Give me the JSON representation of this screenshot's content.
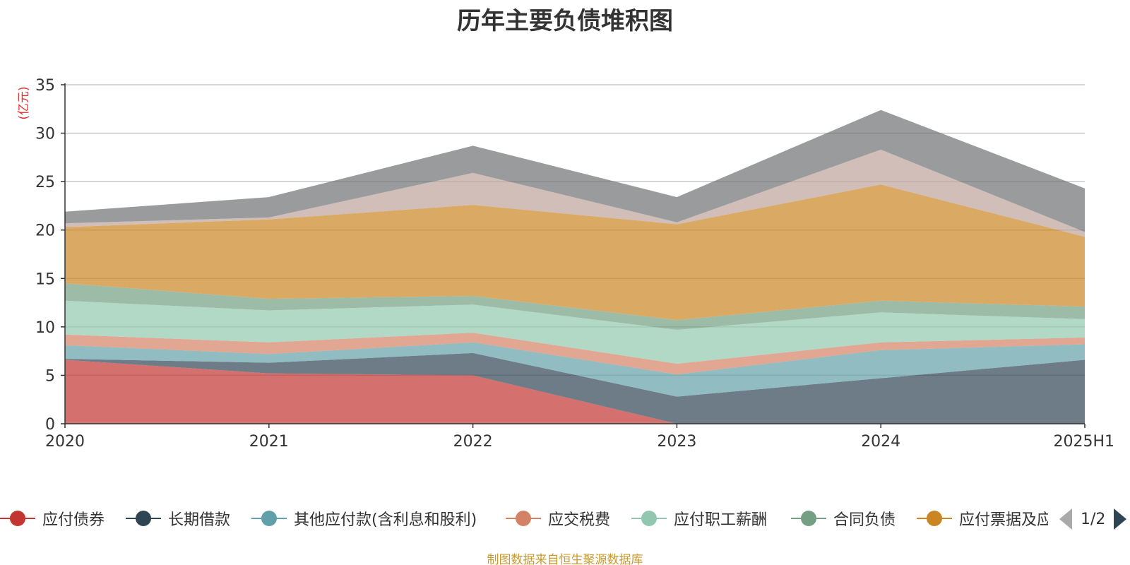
{
  "title": "历年主要负债堆积图",
  "source": "制图数据来自恒生聚源数据库",
  "pager": {
    "label": "1/2"
  },
  "chart_data": {
    "type": "area",
    "stacked": true,
    "title": "历年主要负债堆积图",
    "ylabel": "(亿元)",
    "xlabel": "",
    "ylim": [
      0,
      35
    ],
    "yticks": [
      0,
      5,
      10,
      15,
      20,
      25,
      30,
      35
    ],
    "grid": true,
    "legend_position": "bottom",
    "categories": [
      "2020",
      "2021",
      "2022",
      "2023",
      "2024",
      "2025H1"
    ],
    "series": [
      {
        "name": "应付债券",
        "color": "#c23531",
        "values": [
          6.6,
          5.2,
          5.0,
          0.0,
          0.0,
          0.0
        ]
      },
      {
        "name": "长期借款",
        "color": "#2f4554",
        "values": [
          0.1,
          1.1,
          2.3,
          2.8,
          4.7,
          6.6
        ]
      },
      {
        "name": "其他应付款(含利息和股利)",
        "color": "#61a0a8",
        "values": [
          1.4,
          0.9,
          1.1,
          2.3,
          2.9,
          1.6
        ]
      },
      {
        "name": "应交税费",
        "color": "#d48265",
        "values": [
          1.1,
          1.2,
          1.0,
          1.1,
          0.8,
          0.7
        ]
      },
      {
        "name": "应付职工薪酬",
        "color": "#91c7ae",
        "values": [
          3.5,
          3.3,
          2.9,
          3.5,
          3.1,
          1.9
        ]
      },
      {
        "name": "合同负债",
        "color": "#749f83",
        "values": [
          1.8,
          1.2,
          0.9,
          1.0,
          1.2,
          1.3
        ]
      },
      {
        "name": "应付票据及应付账款",
        "color": "#ca8622",
        "values": [
          5.8,
          8.2,
          9.4,
          9.9,
          12.0,
          7.2
        ]
      },
      {
        "name": "",
        "color": "#bda29a",
        "values": [
          0.4,
          0.2,
          3.3,
          0.2,
          3.6,
          0.5
        ]
      },
      {
        "name": "",
        "color": "#6e7074",
        "values": [
          1.2,
          2.1,
          2.8,
          2.6,
          4.1,
          4.5
        ]
      }
    ]
  },
  "legend": {
    "items": [
      {
        "label": "应付债券",
        "color": "#c23531"
      },
      {
        "label": "长期借款",
        "color": "#2f4554"
      },
      {
        "label": "其他应付款(含利息和股利)",
        "color": "#61a0a8"
      },
      {
        "label": "应交税费",
        "color": "#d48265"
      },
      {
        "label": "应付职工薪酬",
        "color": "#91c7ae"
      },
      {
        "label": "合同负债",
        "color": "#749f83"
      },
      {
        "label": "应付票据及应付账款",
        "color": "#ca8622"
      }
    ]
  }
}
